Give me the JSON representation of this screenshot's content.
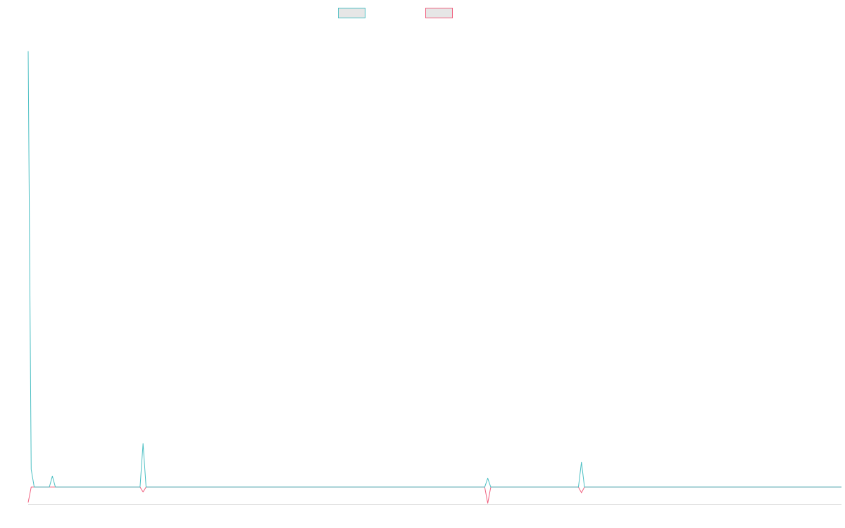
{
  "chart_data": {
    "type": "line",
    "title": "",
    "xlabel": "",
    "ylabel": "",
    "grid": false,
    "legend_position": "top-center",
    "x_count": 270,
    "spikes_note_excluded": true,
    "series": [
      {
        "color": "#4bbfc3",
        "baseline": 0,
        "points": [
          {
            "i": 0,
            "v": 27.0
          },
          {
            "i": 1,
            "v": 1.1
          },
          {
            "i": 2,
            "v": 0
          },
          {
            "i": 7,
            "v": 0
          },
          {
            "i": 8,
            "v": 0.68
          },
          {
            "i": 9,
            "v": 0
          },
          {
            "i": 37,
            "v": 0
          },
          {
            "i": 38,
            "v": 2.7
          },
          {
            "i": 39,
            "v": 0
          },
          {
            "i": 151,
            "v": 0
          },
          {
            "i": 152,
            "v": 0.55
          },
          {
            "i": 153,
            "v": 0
          },
          {
            "i": 182,
            "v": 0
          },
          {
            "i": 183,
            "v": 1.55
          },
          {
            "i": 184,
            "v": 0
          },
          {
            "i": 269,
            "v": 0
          }
        ]
      },
      {
        "color": "#f0607f",
        "baseline": 0,
        "points": [
          {
            "i": 0,
            "v": -0.95
          },
          {
            "i": 1,
            "v": 0
          },
          {
            "i": 37,
            "v": 0
          },
          {
            "i": 38,
            "v": -0.3
          },
          {
            "i": 39,
            "v": 0
          },
          {
            "i": 151,
            "v": 0
          },
          {
            "i": 152,
            "v": -1.0
          },
          {
            "i": 153,
            "v": 0
          },
          {
            "i": 182,
            "v": 0
          },
          {
            "i": 183,
            "v": -0.35
          },
          {
            "i": 184,
            "v": 0
          },
          {
            "i": 269,
            "v": 0
          }
        ]
      }
    ],
    "ylim": [
      -1.05,
      28.6
    ]
  },
  "legend": {
    "items": [
      {
        "color": "#4bbfc3"
      },
      {
        "color": "#f0607f"
      }
    ]
  }
}
